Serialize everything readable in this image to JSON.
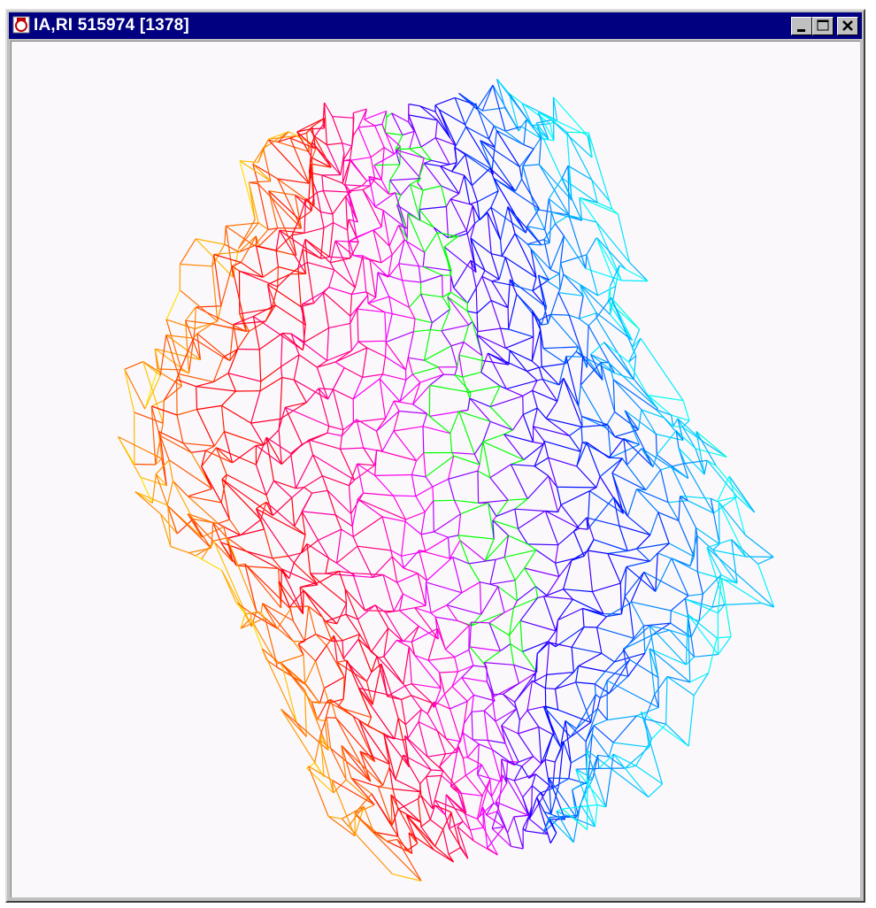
{
  "window": {
    "title": "IA,RI 515974 [1378]"
  }
}
